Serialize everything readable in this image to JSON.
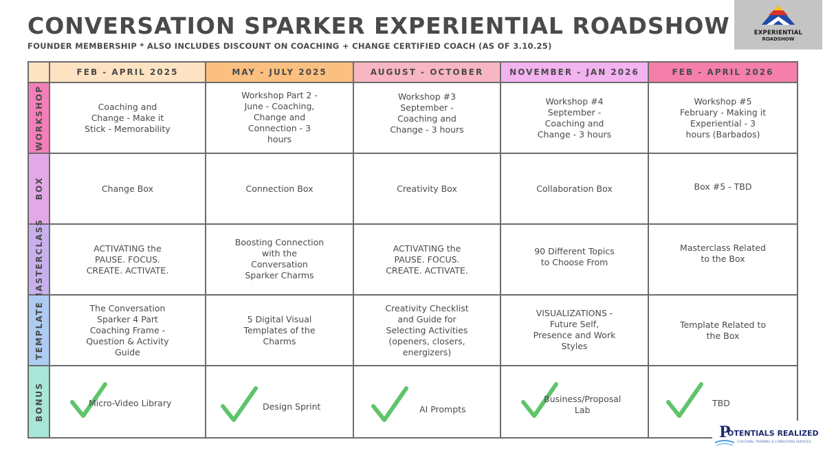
{
  "header": {
    "title": "CONVERSATION SPARKER EXPERIENTIAL ROADSHOW",
    "subtitle": "FOUNDER MEMBERSHIP * ALSO INCLUDES DISCOUNT ON COACHING + CHANGE CERTIFIED COACH (AS OF 3.10.25)"
  },
  "logo_top": {
    "line1": "EXPERIENTIAL",
    "line2": "ROADSHOW"
  },
  "logo_bottom": {
    "name": "OTENTIALS REALIZED",
    "tagline": "COACHING, TRAINING & CONSULTING SERVICES"
  },
  "colors": {
    "col1": "#fde3c2",
    "col2": "#fbc07f",
    "col3": "#f8b6c4",
    "col4": "#f3b2f0",
    "col5": "#f57eab",
    "workshop": "#f47fb8",
    "box": "#e3a8e8",
    "masterclass": "#c9b0ec",
    "template": "#aecbf1",
    "bonus": "#a8e6d8",
    "corner": "#fde3c2",
    "check": "#5fc46a"
  },
  "columns": [
    "FEB - APRIL 2025",
    "MAY - JULY 2025",
    "AUGUST - OCTOBER",
    "NOVEMBER - JAN 2026",
    "FEB - APRIL 2026"
  ],
  "rows": {
    "workshop": {
      "label": "WORKSHOP",
      "cells": [
        "Coaching and\nChange - Make it\nStick - Memorability",
        "Workshop Part 2 -\nJune - Coaching,\nChange and\nConnection -  3\nhours",
        "Workshop #3\nSeptember -\nCoaching and\nChange - 3 hours",
        "Workshop #4\nSeptember -\nCoaching and\nChange - 3 hours",
        "Workshop #5\nFebruary - Making it\nExperiential - 3\nhours (Barbados)"
      ]
    },
    "box": {
      "label": "BOX",
      "cells": [
        "Change  Box",
        "Connection Box",
        "Creativity Box",
        "Collaboration Box",
        "Box #5 - TBD"
      ]
    },
    "masterclass": {
      "label": "MASTERCLASS",
      "cells": [
        "ACTIVATING the\nPAUSE. FOCUS.\nCREATE. ACTIVATE.",
        "Boosting Connection\nwith the\nConversation\nSparker Charms",
        "ACTIVATING the\nPAUSE. FOCUS.\nCREATE. ACTIVATE.",
        "90 Different Topics\nto Choose From",
        "Masterclass Related\nto the Box"
      ]
    },
    "template": {
      "label": "TEMPLATE",
      "cells": [
        "The Conversation\nSparker 4 Part\nCoaching Frame -\nQuestion & Activity\nGuide",
        "5 Digital Visual\nTemplates of the\nCharms",
        "Creativity Checklist\nand Guide for\nSelecting Activities\n(openers, closers,\nenergizers)",
        "VISUALIZATIONS -\nFuture Self,\nPresence and Work\nStyles",
        "Template Related to\nthe Box"
      ]
    },
    "bonus": {
      "label": "BONUS",
      "cells": [
        "Micro-Video Library",
        "Design Sprint",
        "AI Prompts",
        "Business/Proposal\nLab",
        "TBD"
      ]
    }
  }
}
